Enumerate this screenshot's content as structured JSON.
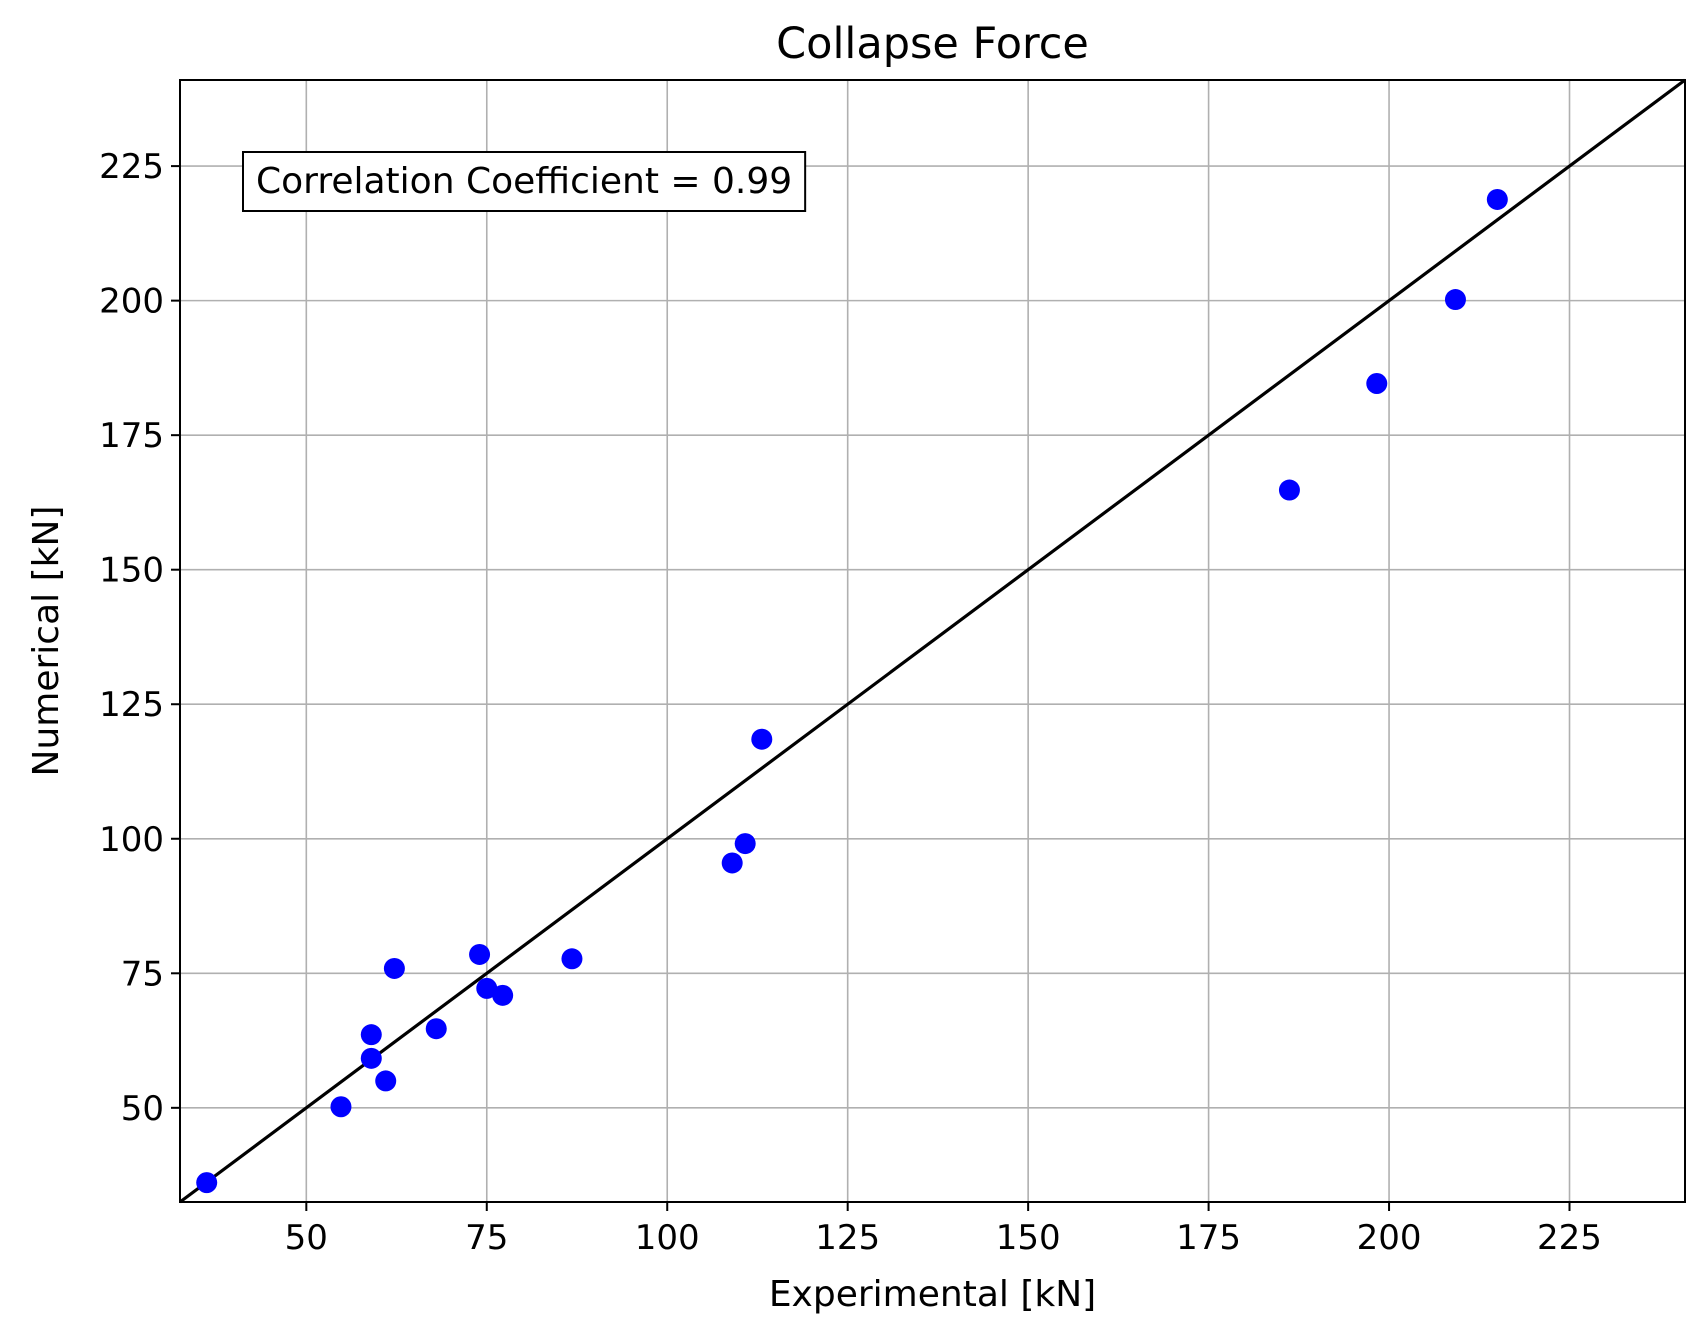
{
  "chart_data": {
    "type": "scatter",
    "title": "Collapse Force",
    "xlabel": "Experimental [kN]",
    "ylabel": "Numerical [kN]",
    "xlim": [
      32.5,
      241
    ],
    "ylim": [
      32.5,
      241
    ],
    "xticks": [
      50,
      75,
      100,
      125,
      150,
      175,
      200,
      225
    ],
    "yticks": [
      50,
      75,
      100,
      125,
      150,
      175,
      200,
      225
    ],
    "grid": true,
    "annotation": "Correlation Coefficient = 0.99",
    "annotation_position": "top-left",
    "point_color": "#0000ff",
    "reference_line": {
      "x": [
        32.5,
        241
      ],
      "y": [
        32.5,
        241
      ],
      "color": "#000000"
    },
    "points": [
      {
        "x": 36.2,
        "y": 36.1
      },
      {
        "x": 54.8,
        "y": 50.2
      },
      {
        "x": 59.0,
        "y": 59.2
      },
      {
        "x": 59.0,
        "y": 63.6
      },
      {
        "x": 61.0,
        "y": 55.0
      },
      {
        "x": 62.2,
        "y": 75.9
      },
      {
        "x": 68.0,
        "y": 64.7
      },
      {
        "x": 74.0,
        "y": 78.5
      },
      {
        "x": 75.0,
        "y": 72.2
      },
      {
        "x": 77.2,
        "y": 70.9
      },
      {
        "x": 86.8,
        "y": 77.7
      },
      {
        "x": 109.0,
        "y": 95.5
      },
      {
        "x": 110.8,
        "y": 99.1
      },
      {
        "x": 113.1,
        "y": 118.5
      },
      {
        "x": 186.2,
        "y": 164.8
      },
      {
        "x": 198.3,
        "y": 184.6
      },
      {
        "x": 209.2,
        "y": 200.2
      },
      {
        "x": 215.0,
        "y": 218.8
      }
    ]
  }
}
